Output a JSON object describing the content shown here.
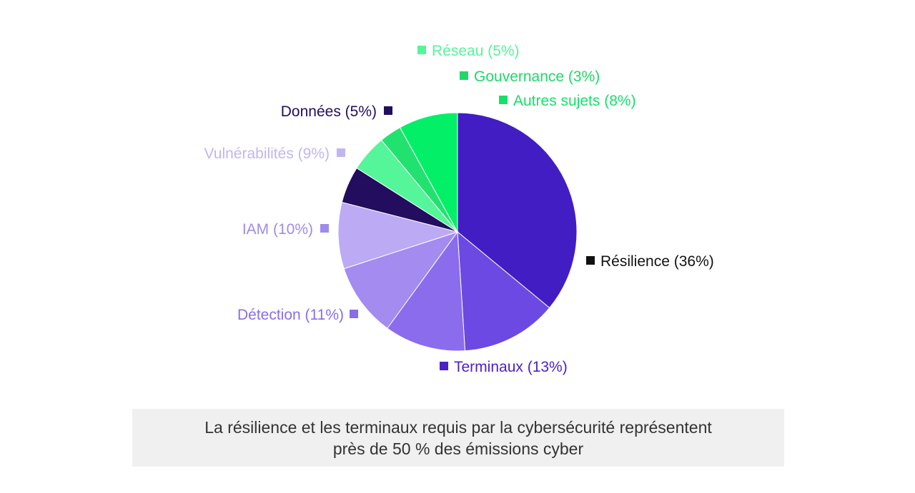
{
  "chart_data": {
    "type": "pie",
    "start_angle_deg": 0,
    "direction": "clockwise",
    "title": "",
    "slices": [
      {
        "label": "Résilience",
        "value": 36,
        "display": "Résilience (36%)",
        "color": "#421dc4",
        "label_color": "#111111",
        "marker_color": "#111111"
      },
      {
        "label": "Terminaux",
        "value": 13,
        "display": "Terminaux (13%)",
        "color": "#6c49e2",
        "label_color": "#4a22c8",
        "marker_color": "#4a22c8"
      },
      {
        "label": "Détection",
        "value": 11,
        "display": "Détection (11%)",
        "color": "#8b6cec",
        "label_color": "#8a6ee6",
        "marker_color": "#8a6ee6"
      },
      {
        "label": "IAM",
        "value": 10,
        "display": "IAM (10%)",
        "color": "#a48bf0",
        "label_color": "#9f8bea",
        "marker_color": "#9f8bea"
      },
      {
        "label": "Vulnérabilités",
        "value": 9,
        "display": "Vulnérabilités (9%)",
        "color": "#bcaaf4",
        "label_color": "#c3b5f1",
        "marker_color": "#c3b5f1"
      },
      {
        "label": "Données",
        "value": 5,
        "display": "Données (5%)",
        "color": "#220d5e",
        "label_color": "#220d5e",
        "marker_color": "#220d5e"
      },
      {
        "label": "Réseau",
        "value": 5,
        "display": "Réseau (5%)",
        "color": "#55f59a",
        "label_color": "#55f59a",
        "marker_color": "#55f59a"
      },
      {
        "label": "Gouvernance",
        "value": 3,
        "display": "Gouvernance (3%)",
        "color": "#22e26f",
        "label_color": "#1fd868",
        "marker_color": "#1fd868"
      },
      {
        "label": "Autres sujets",
        "value": 8,
        "display": "Autres sujets (8%)",
        "color": "#03ef68",
        "label_color": "#14e16a",
        "marker_color": "#14e16a"
      }
    ]
  },
  "caption": {
    "line1": "La résilience et les terminaux requis par la cybersécurité représentent",
    "line2": "près de 50 % des émissions cyber"
  }
}
